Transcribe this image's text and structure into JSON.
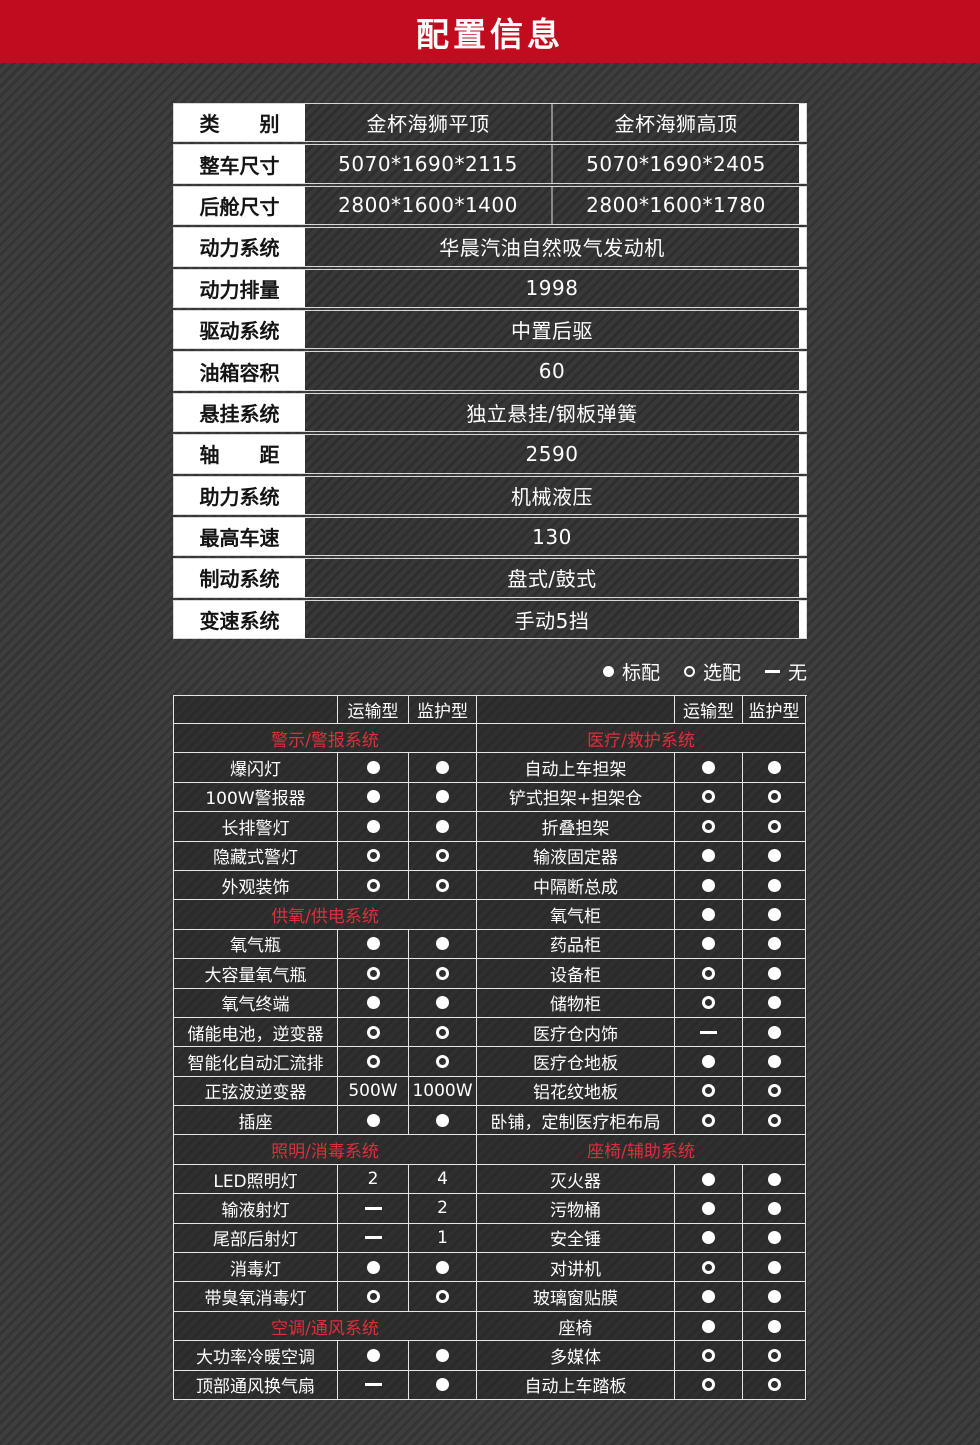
{
  "banner": {
    "title": "配置信息"
  },
  "colors": {
    "banner_red": "#c00c1e",
    "section_red": "#de2f3d",
    "background": "#363636",
    "cell_dark": "#2e2e2e",
    "text_white": "#ffffff"
  },
  "marks_legend_meaning": {
    "dot": "标配",
    "circle": "选配",
    "dash": "无"
  },
  "spec_table": {
    "rows": [
      {
        "label": "类　　别",
        "values": [
          "金杯海狮平顶",
          "金杯海狮高顶"
        ]
      },
      {
        "label": "整车尺寸",
        "values": [
          "5070*1690*2115",
          "5070*1690*2405"
        ]
      },
      {
        "label": "后舱尺寸",
        "values": [
          "2800*1600*1400",
          "2800*1600*1780"
        ]
      },
      {
        "label": "动力系统",
        "span": "华晨汽油自然吸气发动机"
      },
      {
        "label": "动力排量",
        "span": "1998"
      },
      {
        "label": "驱动系统",
        "span": "中置后驱"
      },
      {
        "label": "油箱容积",
        "span": "60"
      },
      {
        "label": "悬挂系统",
        "span": "独立悬挂/钢板弹簧"
      },
      {
        "label": "轴　　距",
        "span": "2590"
      },
      {
        "label": "助力系统",
        "span": "机械液压"
      },
      {
        "label": "最高车速",
        "span": "130"
      },
      {
        "label": "制动系统",
        "span": "盘式/鼓式"
      },
      {
        "label": "变速系统",
        "span": "手动5挡"
      }
    ]
  },
  "legend": {
    "items": [
      {
        "mark": "dot",
        "label": "标配"
      },
      {
        "mark": "circle",
        "label": "选配"
      },
      {
        "mark": "dash",
        "label": "无"
      }
    ]
  },
  "feature_table": {
    "col_headers": [
      "运输型",
      "监护型"
    ],
    "left_rows": [
      {
        "type": "section",
        "label": "警示/警报系统"
      },
      {
        "type": "item",
        "label": "爆闪灯",
        "v1": "dot",
        "v2": "dot"
      },
      {
        "type": "item",
        "label": "100W警报器",
        "v1": "dot",
        "v2": "dot"
      },
      {
        "type": "item",
        "label": "长排警灯",
        "v1": "dot",
        "v2": "dot"
      },
      {
        "type": "item",
        "label": "隐藏式警灯",
        "v1": "circle",
        "v2": "circle"
      },
      {
        "type": "item",
        "label": "外观装饰",
        "v1": "circle",
        "v2": "circle"
      },
      {
        "type": "section",
        "label": "供氧/供电系统"
      },
      {
        "type": "item",
        "label": "氧气瓶",
        "v1": "dot",
        "v2": "dot"
      },
      {
        "type": "item",
        "label": "大容量氧气瓶",
        "v1": "circle",
        "v2": "circle"
      },
      {
        "type": "item",
        "label": "氧气终端",
        "v1": "dot",
        "v2": "dot"
      },
      {
        "type": "item",
        "label": "储能电池，逆变器",
        "v1": "circle",
        "v2": "circle"
      },
      {
        "type": "item",
        "label": "智能化自动汇流排",
        "v1": "circle",
        "v2": "circle"
      },
      {
        "type": "item",
        "label": "正弦波逆变器",
        "v1": "500W",
        "v2": "1000W"
      },
      {
        "type": "item",
        "label": "插座",
        "v1": "dot",
        "v2": "dot"
      },
      {
        "type": "section",
        "label": "照明/消毒系统"
      },
      {
        "type": "item",
        "label": "LED照明灯",
        "v1": "2",
        "v2": "4"
      },
      {
        "type": "item",
        "label": "输液射灯",
        "v1": "dash",
        "v2": "2"
      },
      {
        "type": "item",
        "label": "尾部后射灯",
        "v1": "dash",
        "v2": "1"
      },
      {
        "type": "item",
        "label": "消毒灯",
        "v1": "dot",
        "v2": "dot"
      },
      {
        "type": "item",
        "label": "带臭氧消毒灯",
        "v1": "circle",
        "v2": "circle"
      },
      {
        "type": "section",
        "label": "空调/通风系统"
      },
      {
        "type": "item",
        "label": "大功率冷暖空调",
        "v1": "dot",
        "v2": "dot"
      },
      {
        "type": "item",
        "label": "顶部通风换气扇",
        "v1": "dash",
        "v2": "dot"
      }
    ],
    "right_rows": [
      {
        "type": "section",
        "label": "医疗/救护系统"
      },
      {
        "type": "item",
        "label": "自动上车担架",
        "v1": "dot",
        "v2": "dot"
      },
      {
        "type": "item",
        "label": "铲式担架+担架仓",
        "v1": "circle",
        "v2": "circle"
      },
      {
        "type": "item",
        "label": "折叠担架",
        "v1": "circle",
        "v2": "circle"
      },
      {
        "type": "item",
        "label": "输液固定器",
        "v1": "dot",
        "v2": "dot"
      },
      {
        "type": "item",
        "label": "中隔断总成",
        "v1": "dot",
        "v2": "dot"
      },
      {
        "type": "item",
        "label": "氧气柜",
        "v1": "dot",
        "v2": "dot"
      },
      {
        "type": "item",
        "label": "药品柜",
        "v1": "dot",
        "v2": "dot"
      },
      {
        "type": "item",
        "label": "设备柜",
        "v1": "circle",
        "v2": "dot"
      },
      {
        "type": "item",
        "label": "储物柜",
        "v1": "circle",
        "v2": "dot"
      },
      {
        "type": "item",
        "label": "医疗仓内饰",
        "v1": "dash",
        "v2": "dot"
      },
      {
        "type": "item",
        "label": "医疗仓地板",
        "v1": "dot",
        "v2": "dot"
      },
      {
        "type": "item",
        "label": "铝花纹地板",
        "v1": "circle",
        "v2": "circle"
      },
      {
        "type": "item",
        "label": "卧铺，定制医疗柜布局",
        "v1": "circle",
        "v2": "circle"
      },
      {
        "type": "section",
        "label": "座椅/辅助系统"
      },
      {
        "type": "item",
        "label": "灭火器",
        "v1": "dot",
        "v2": "dot"
      },
      {
        "type": "item",
        "label": "污物桶",
        "v1": "dot",
        "v2": "dot"
      },
      {
        "type": "item",
        "label": "安全锤",
        "v1": "dot",
        "v2": "dot"
      },
      {
        "type": "item",
        "label": "对讲机",
        "v1": "circle",
        "v2": "dot"
      },
      {
        "type": "item",
        "label": "玻璃窗贴膜",
        "v1": "dot",
        "v2": "dot"
      },
      {
        "type": "item",
        "label": "座椅",
        "v1": "dot",
        "v2": "dot"
      },
      {
        "type": "item",
        "label": "多媒体",
        "v1": "circle",
        "v2": "circle"
      },
      {
        "type": "item",
        "label": "自动上车踏板",
        "v1": "circle",
        "v2": "circle"
      }
    ]
  }
}
